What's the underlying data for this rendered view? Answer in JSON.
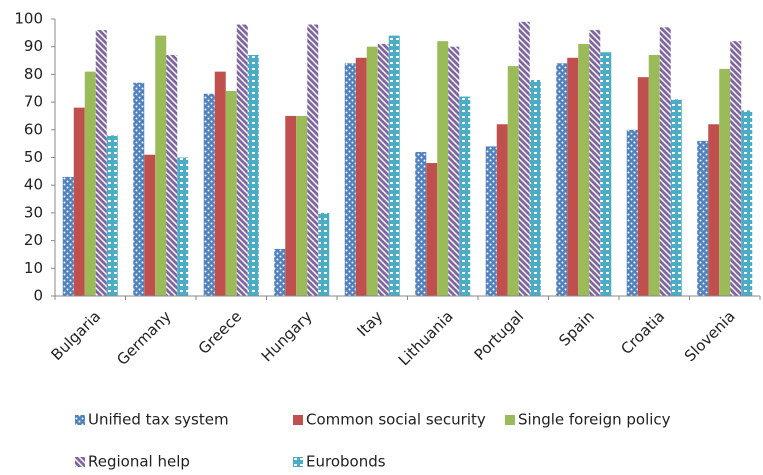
{
  "chart_data": {
    "type": "bar",
    "categories": [
      "Bulgaria",
      "Germany",
      "Greece",
      "Hungary",
      "Itay",
      "Lithuania",
      "Portugal",
      "Spain",
      "Croatia",
      "Slovenia"
    ],
    "series": [
      {
        "name": "Unified tax system",
        "color": "#4f81bd",
        "values": [
          43,
          77,
          73,
          17,
          84,
          52,
          54,
          84,
          60,
          56
        ]
      },
      {
        "name": "Common social security",
        "color": "#c0504d",
        "values": [
          68,
          51,
          81,
          65,
          86,
          48,
          62,
          86,
          79,
          62
        ]
      },
      {
        "name": "Single foreign policy",
        "color": "#9bbb59",
        "values": [
          81,
          94,
          74,
          65,
          90,
          92,
          83,
          91,
          87,
          82
        ]
      },
      {
        "name": "Regional help",
        "color": "#8064a2",
        "values": [
          96,
          87,
          98,
          98,
          91,
          90,
          99,
          96,
          97,
          92
        ]
      },
      {
        "name": "Eurobonds",
        "color": "#4bacc6",
        "values": [
          58,
          50,
          87,
          30,
          94,
          72,
          78,
          88,
          71,
          67
        ]
      }
    ],
    "ylim": [
      0,
      100
    ],
    "yticks": [
      0,
      10,
      20,
      30,
      40,
      50,
      60,
      70,
      80,
      90,
      100
    ],
    "grid": false,
    "legend": "bottom"
  }
}
